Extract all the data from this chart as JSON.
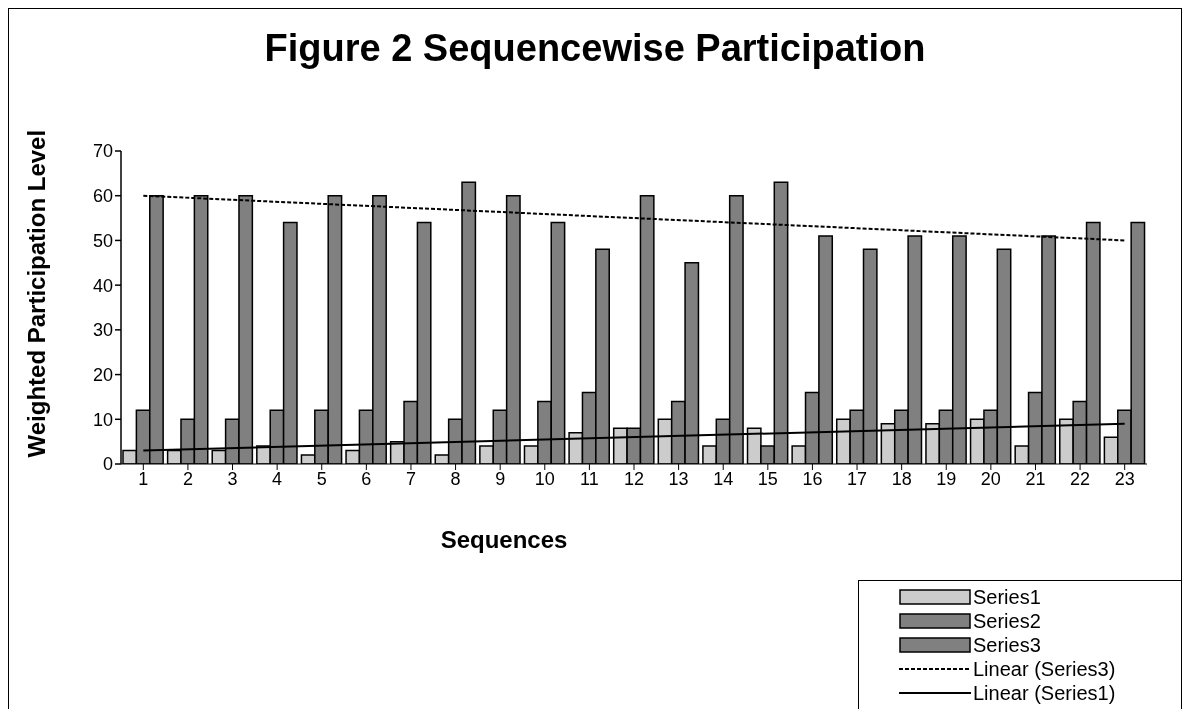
{
  "chart_data": {
    "type": "bar",
    "title": "Figure 2 Sequencewise Participation",
    "xlabel": "Sequences",
    "ylabel": "Weighted Participation Level",
    "x": [
      1,
      2,
      3,
      4,
      5,
      6,
      7,
      8,
      9,
      10,
      11,
      12,
      13,
      14,
      15,
      16,
      17,
      18,
      19,
      20,
      21,
      22,
      23
    ],
    "xlim": [
      0.5,
      23.5
    ],
    "xticks": [
      1,
      2,
      3,
      4,
      5,
      6,
      7,
      8,
      9,
      10,
      11,
      12,
      13,
      14,
      15,
      16,
      17,
      18,
      19,
      20,
      21,
      22,
      23
    ],
    "ylim": [
      0,
      70
    ],
    "yticks": [
      0,
      10,
      20,
      30,
      40,
      50,
      60,
      70
    ],
    "grid": false,
    "legend": "bottom right",
    "marker": "none",
    "series": [
      {
        "name": "Series1",
        "color": "#cccccc",
        "values": [
          3,
          3,
          3,
          4,
          2,
          3,
          5,
          2,
          4,
          4,
          7,
          8,
          10,
          4,
          8,
          4,
          10,
          9,
          9,
          10,
          4,
          10,
          6
        ]
      },
      {
        "name": "Series2",
        "color": "#808080",
        "values": [
          12,
          10,
          10,
          12,
          12,
          12,
          14,
          10,
          12,
          14,
          16,
          8,
          14,
          10,
          4,
          16,
          12,
          12,
          12,
          12,
          16,
          14,
          12
        ]
      },
      {
        "name": "Series3",
        "color": "#808080",
        "values": [
          60,
          60,
          60,
          54,
          60,
          60,
          54,
          63,
          60,
          54,
          48,
          60,
          45,
          60,
          63,
          51,
          48,
          51,
          51,
          48,
          51,
          54,
          54
        ]
      },
      {
        "name": "Linear (Series3)",
        "type": "line",
        "line_style": "dotted",
        "color": "#000000",
        "values": [
          60,
          null,
          null,
          null,
          null,
          null,
          null,
          null,
          null,
          null,
          null,
          null,
          null,
          null,
          null,
          null,
          null,
          null,
          null,
          null,
          null,
          null,
          50
        ]
      },
      {
        "name": "Linear (Series1)",
        "type": "line",
        "line_style": "solid",
        "color": "#000000",
        "values": [
          3,
          null,
          null,
          null,
          null,
          null,
          null,
          null,
          null,
          null,
          null,
          null,
          null,
          null,
          null,
          null,
          null,
          null,
          null,
          null,
          null,
          null,
          9
        ]
      }
    ]
  }
}
